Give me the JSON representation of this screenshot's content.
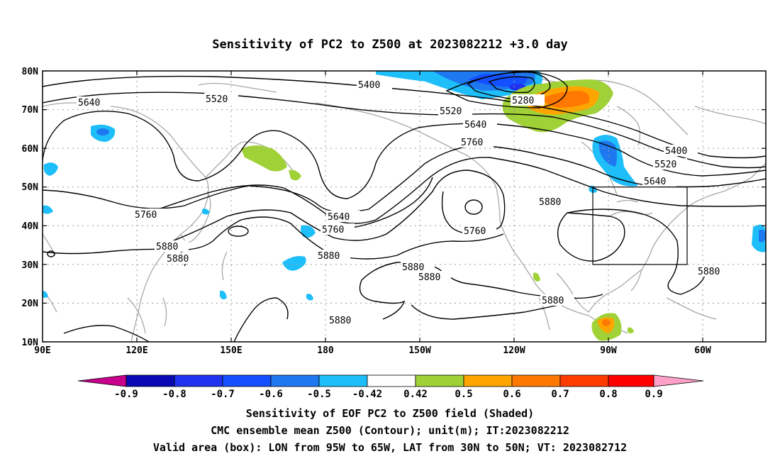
{
  "title": "Sensitivity of PC2 to Z500 at 2023082212 +3.0 day",
  "map": {
    "lon_labels": [
      "90E",
      "120E",
      "150E",
      "180",
      "150W",
      "120W",
      "90W",
      "60W"
    ],
    "lat_labels": [
      "80N",
      "70N",
      "60N",
      "50N",
      "40N",
      "30N",
      "20N",
      "10N"
    ],
    "contour_labels": [
      "5400",
      "5520",
      "5640",
      "5280",
      "5520",
      "5640",
      "5760",
      "5400",
      "5520",
      "5640",
      "5760",
      "5640",
      "5760",
      "5880",
      "5880",
      "5880",
      "5760",
      "5880",
      "5880",
      "5880",
      "5880",
      "5880",
      "5880"
    ],
    "valid_box": {
      "lon_from": "95W",
      "lon_to": "65W",
      "lat_from": "30N",
      "lat_to": "50N"
    },
    "colors": {
      "land_outline": "#a8a8a8",
      "grid": "#9a9a9a",
      "contour": "#000000",
      "box": "#000000"
    }
  },
  "colorbar": {
    "labels": [
      "-0.9",
      "-0.8",
      "-0.7",
      "-0.6",
      "-0.5",
      "-0.42",
      "0.42",
      "0.5",
      "0.6",
      "0.7",
      "0.8",
      "0.9"
    ],
    "colors": [
      "#c8008c",
      "#0a0ab4",
      "#1e32f0",
      "#1450ff",
      "#1e78f0",
      "#1ebefa",
      "#ffffff",
      "#a0d237",
      "#ffa500",
      "#ff7800",
      "#ff3c00",
      "#ff0000",
      "#ffa0c8"
    ]
  },
  "captions": {
    "line1": "Sensitivity of EOF PC2 to Z500 field (Shaded)",
    "line2": "CMC ensemble mean Z500 (Contour); unit(m); IT:2023082212",
    "line3": "Valid area (box): LON from 95W to 65W, LAT from 30N to 50N; VT: 2023082712"
  }
}
